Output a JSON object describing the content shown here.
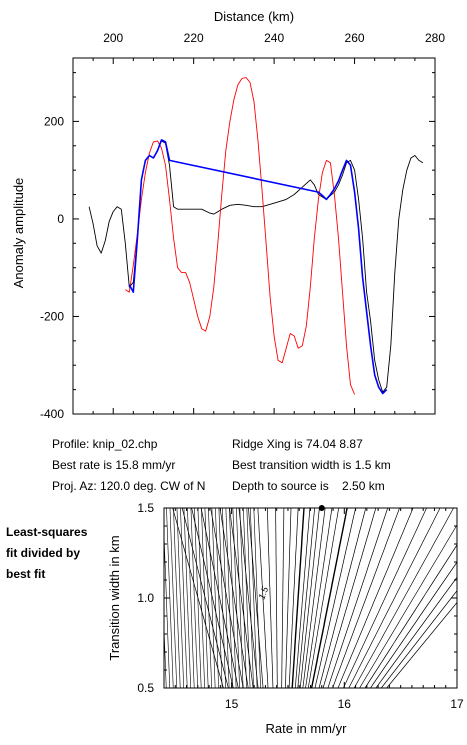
{
  "info": {
    "profile": "Profile: knip_02.chp",
    "best_rate": "Best rate is 15.8 mm/yr",
    "proj_az": "Proj. Az: 120.0 deg. CW of N",
    "ridge_xing": "Ridge Xing is 74.04 8.87",
    "best_width": "Best transition width is 1.5 km",
    "depth": "Depth to source is    2.50 km"
  },
  "side_note": [
    "Least-squares",
    "fit divided by",
    "best fit"
  ],
  "contour_label": "1.5",
  "colors": {
    "observed": "#000000",
    "model": "#ff0000",
    "fit": "#0000ff"
  },
  "chart_data": [
    {
      "type": "line",
      "xlabel": "Distance (km)",
      "ylabel": "Anomaly amplitude",
      "xlim": [
        190,
        280
      ],
      "ylim": [
        -400,
        330
      ],
      "xticks": [
        200,
        220,
        240,
        260,
        280
      ],
      "yticks": [
        -400,
        -200,
        0,
        200
      ],
      "series": [
        {
          "color": "#000000",
          "points": [
            [
              194,
              25
            ],
            [
              195,
              -10
            ],
            [
              196,
              -55
            ],
            [
              197,
              -70
            ],
            [
              198,
              -45
            ],
            [
              199,
              -5
            ],
            [
              200,
              15
            ],
            [
              201,
              25
            ],
            [
              202,
              20
            ],
            [
              203,
              -50
            ],
            [
              204,
              -140
            ],
            [
              205,
              -130
            ],
            [
              206,
              -40
            ],
            [
              207,
              80
            ],
            [
              208,
              120
            ],
            [
              209,
              130
            ],
            [
              210,
              125
            ],
            [
              211,
              140
            ],
            [
              212,
              160
            ],
            [
              213,
              155
            ],
            [
              214,
              110
            ],
            [
              215,
              25
            ],
            [
              216,
              20
            ],
            [
              220,
              20
            ],
            [
              222,
              20
            ],
            [
              224,
              12
            ],
            [
              225,
              10
            ],
            [
              227,
              20
            ],
            [
              229,
              28
            ],
            [
              231,
              30
            ],
            [
              233,
              28
            ],
            [
              235,
              25
            ],
            [
              237,
              25
            ],
            [
              239,
              30
            ],
            [
              241,
              35
            ],
            [
              243,
              40
            ],
            [
              245,
              50
            ],
            [
              247,
              65
            ],
            [
              249,
              80
            ],
            [
              250,
              70
            ],
            [
              251,
              50
            ],
            [
              252,
              45
            ],
            [
              253,
              40
            ],
            [
              254,
              48
            ],
            [
              255,
              55
            ],
            [
              256,
              70
            ],
            [
              257,
              90
            ],
            [
              258,
              115
            ],
            [
              259,
              120
            ],
            [
              260,
              100
            ],
            [
              261,
              40
            ],
            [
              262,
              -40
            ],
            [
              263,
              -150
            ],
            [
              264,
              -210
            ],
            [
              265,
              -290
            ],
            [
              266,
              -330
            ],
            [
              267,
              -355
            ],
            [
              268,
              -345
            ],
            [
              269,
              -260
            ],
            [
              270,
              -110
            ],
            [
              271,
              0
            ],
            [
              272,
              60
            ],
            [
              273,
              100
            ],
            [
              274,
              125
            ],
            [
              275,
              130
            ],
            [
              276,
              120
            ],
            [
              277,
              115
            ]
          ]
        },
        {
          "color": "#ff0000",
          "points": [
            [
              203,
              -145
            ],
            [
              204,
              -150
            ],
            [
              205,
              -95
            ],
            [
              206,
              -30
            ],
            [
              207,
              40
            ],
            [
              208,
              95
            ],
            [
              209,
              135
            ],
            [
              210,
              158
            ],
            [
              211,
              160
            ],
            [
              212,
              145
            ],
            [
              213,
              110
            ],
            [
              214,
              40
            ],
            [
              215,
              -40
            ],
            [
              216,
              -100
            ],
            [
              217,
              -110
            ],
            [
              218,
              -110
            ],
            [
              219,
              -130
            ],
            [
              220,
              -165
            ],
            [
              221,
              -200
            ],
            [
              222,
              -225
            ],
            [
              223,
              -230
            ],
            [
              224,
              -200
            ],
            [
              225,
              -140
            ],
            [
              226,
              -50
            ],
            [
              227,
              50
            ],
            [
              228,
              140
            ],
            [
              229,
              200
            ],
            [
              230,
              245
            ],
            [
              231,
              275
            ],
            [
              232,
              288
            ],
            [
              233,
              290
            ],
            [
              234,
              280
            ],
            [
              235,
              240
            ],
            [
              236,
              160
            ],
            [
              237,
              60
            ],
            [
              238,
              -50
            ],
            [
              239,
              -160
            ],
            [
              240,
              -240
            ],
            [
              241,
              -290
            ],
            [
              242,
              -295
            ],
            [
              243,
              -265
            ],
            [
              244,
              -235
            ],
            [
              245,
              -240
            ],
            [
              246,
              -265
            ],
            [
              247,
              -260
            ],
            [
              248,
              -220
            ],
            [
              249,
              -140
            ],
            [
              250,
              -40
            ],
            [
              251,
              40
            ],
            [
              252,
              95
            ],
            [
              253,
              120
            ],
            [
              254,
              115
            ],
            [
              255,
              50
            ],
            [
              256,
              -40
            ],
            [
              257,
              -150
            ],
            [
              258,
              -260
            ],
            [
              259,
              -340
            ],
            [
              260,
              -360
            ]
          ]
        },
        {
          "color": "#0000ff",
          "points": [
            [
              204,
              -135
            ],
            [
              205,
              -150
            ],
            [
              206,
              -40
            ],
            [
              207,
              80
            ],
            [
              208,
              120
            ],
            [
              209,
              130
            ],
            [
              210,
              125
            ],
            [
              211,
              140
            ],
            [
              212,
              162
            ],
            [
              213,
              158
            ],
            [
              214,
              120
            ],
            [
              251,
              55
            ],
            [
              252,
              48
            ],
            [
              253,
              40
            ],
            [
              254,
              50
            ],
            [
              255,
              62
            ],
            [
              256,
              78
            ],
            [
              257,
              100
            ],
            [
              258,
              120
            ],
            [
              259,
              110
            ],
            [
              260,
              55
            ],
            [
              261,
              -20
            ],
            [
              262,
              -120
            ],
            [
              263,
              -190
            ],
            [
              264,
              -260
            ],
            [
              265,
              -320
            ],
            [
              266,
              -345
            ],
            [
              267,
              -358
            ],
            [
              268,
              -350
            ]
          ]
        }
      ]
    },
    {
      "type": "contour",
      "xlabel": "Rate in mm/yr",
      "ylabel": "Transition width in km",
      "xlim": [
        14.4,
        17
      ],
      "ylim": [
        0.5,
        1.5
      ],
      "xticks": [
        15,
        16,
        17
      ],
      "yticks": [
        0.5,
        1.0,
        1.5
      ],
      "best_fit": {
        "rate": 15.8,
        "width": 1.5
      },
      "contour_offsets": [
        0.02,
        0.06,
        0.1,
        0.15,
        0.2,
        0.26,
        0.32,
        0.39,
        0.46,
        0.54,
        0.62,
        0.7,
        0.78,
        0.86,
        0.94,
        1.02,
        1.1,
        1.18,
        1.26
      ]
    }
  ]
}
